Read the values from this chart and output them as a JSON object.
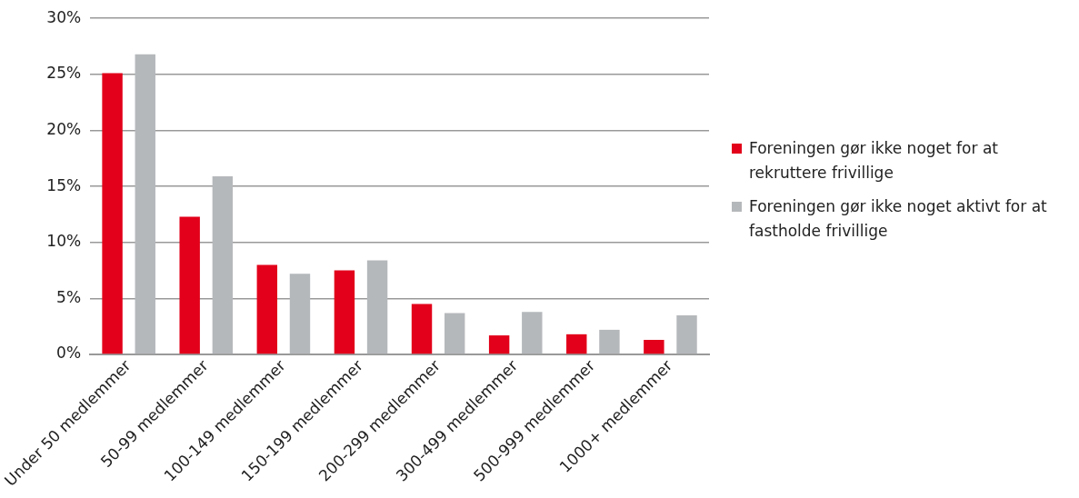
{
  "chart_data": {
    "type": "bar",
    "categories": [
      "Under 50 medlemmer",
      "50-99 medlemmer",
      "100-149 medlemmer",
      "150-199 medlemmer",
      "200-299 medlemmer",
      "300-499 medlemmer",
      "500-999 medlemmer",
      "1000+ medlemmer"
    ],
    "series": [
      {
        "name": "Foreningen gør ikke noget for at rekruttere frivillige",
        "color": "#e2001a",
        "values": [
          25.1,
          12.3,
          8.0,
          7.5,
          4.5,
          1.7,
          1.8,
          1.3
        ]
      },
      {
        "name": "Foreningen gør ikke noget aktivt for at fastholde frivillige",
        "color": "#b5b8bb",
        "values": [
          26.8,
          15.9,
          7.2,
          8.4,
          3.7,
          3.8,
          2.2,
          3.5
        ]
      }
    ],
    "ylim": [
      0,
      30
    ],
    "yticks": [
      {
        "value": 0,
        "label": "0%"
      },
      {
        "value": 5,
        "label": "5%"
      },
      {
        "value": 10,
        "label": "10%"
      },
      {
        "value": 15,
        "label": "15%"
      },
      {
        "value": 20,
        "label": "20%"
      },
      {
        "value": 25,
        "label": "25%"
      },
      {
        "value": 30,
        "label": "30%"
      }
    ],
    "grid": "y",
    "legend": "right"
  }
}
